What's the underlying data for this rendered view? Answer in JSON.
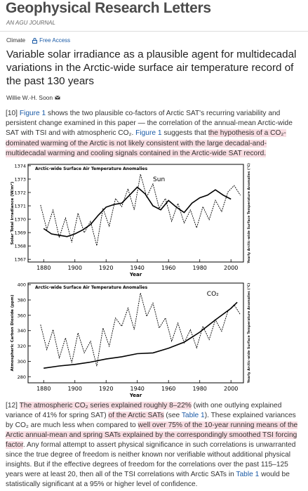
{
  "header": {
    "journal": "Geophysical Research Letters",
    "subtitle": "AN AGU JOURNAL"
  },
  "tags": [
    "Climate",
    "Free Access"
  ],
  "title": "Variable solar irradiance as a plausible agent for multidecadal variations in the Arctic-wide surface air temperature record of the past 130 years",
  "author": "Willie W.-H. Soon",
  "paragraphs": [
    {
      "segments": [
        {
          "text": "[10] "
        },
        {
          "text": "Figure 1",
          "style": "link"
        },
        {
          "text": " shows the two plausible co-factors of Arctic SAT's recurring variability and persistent change examined in this paper — the correlation of the annual-mean Arctic-wide SAT with TSI and with atmospheric CO₂. "
        },
        {
          "text": "Figure 1",
          "style": "link"
        },
        {
          "text": " suggests that "
        },
        {
          "text": "the hypothesis of a CO₂-dominated warming of the Arctic is not likely consistent with the large decadal-and-multidecadal warming and cooling signals contained in the Arctic-wide SAT record.",
          "style": "highlight"
        }
      ]
    },
    {
      "segments": [
        {
          "text": "[12] "
        },
        {
          "text": "The atmospheric CO₂ series explained roughly 8–22%",
          "style": "highlight"
        },
        {
          "text": " (with one outlying explained variance of 41% for spring SAT) "
        },
        {
          "text": "of the Arctic SATs",
          "style": "highlight"
        },
        {
          "text": " (see "
        },
        {
          "text": "Table 1",
          "style": "link"
        },
        {
          "text": "). These explained variances by CO₂ are much less when compared to "
        },
        {
          "text": "well over 75% of the 10-year running means of the Arctic annual-mean and spring SATs explained by the correspondingly smoothed TSI forcing factor",
          "style": "highlight"
        },
        {
          "text": ". Any formal attempt to assert physical significance in such correlations is unwarranted since the true degree of freedom is neither known nor verifiable without additional physical insights. But if the effective degrees of freedom for the correlations over the past 115–125 years were at least 20, then all of the TSI correlations with Arctic SATs in "
        },
        {
          "text": "Table 1",
          "style": "link"
        },
        {
          "text": " would be statistically significant at a 95% or higher level of confidence."
        }
      ]
    }
  ],
  "chart_data": [
    {
      "type": "line",
      "title": "Arctic-wide Surface Air Temperature Anomalies",
      "annotation": "Sun",
      "xlabel": "Year",
      "ylabel": "Solar Total Irradiance (W/m²)",
      "y2label": "Yearly Arctic-wide Surface Temperature Anomalies (°C)",
      "xlim": [
        1870,
        2008
      ],
      "xticks": [
        1880,
        1900,
        1920,
        1940,
        1960,
        1980,
        2000
      ],
      "ylim": [
        1366.8,
        1374.1
      ],
      "yticks": [
        1367,
        1368,
        1369,
        1370,
        1371,
        1372,
        1373,
        1374
      ],
      "y2lim": [
        -3,
        3
      ],
      "series": [
        {
          "color": "#000000",
          "dashed": false,
          "x": [
            1880,
            1885,
            1890,
            1895,
            1900,
            1905,
            1910,
            1915,
            1920,
            1925,
            1930,
            1935,
            1940,
            1945,
            1950,
            1955,
            1960,
            1965,
            1970,
            1975,
            1980,
            1985,
            1990,
            1995,
            2000
          ],
          "values": [
            1369.3,
            1368.9,
            1368.8,
            1368.7,
            1368.9,
            1369.2,
            1369.6,
            1370.3,
            1370.9,
            1371.1,
            1371.2,
            1371.8,
            1372.4,
            1371.9,
            1371.0,
            1370.7,
            1371.4,
            1370.9,
            1370.5,
            1371.2,
            1371.6,
            1371.8,
            1372.2,
            1371.8,
            1371.5
          ]
        },
        {
          "color": "#000000",
          "dashed": true,
          "axis": "y2",
          "x": [
            1878,
            1882,
            1886,
            1890,
            1894,
            1898,
            1902,
            1906,
            1910,
            1914,
            1918,
            1922,
            1926,
            1930,
            1934,
            1938,
            1942,
            1946,
            1950,
            1954,
            1958,
            1962,
            1966,
            1970,
            1974,
            1978,
            1982,
            1986,
            1990,
            1994,
            1998,
            2002,
            2006
          ],
          "values": [
            0.5,
            -1.0,
            0.2,
            -1.5,
            -0.3,
            -1.8,
            0.0,
            -1.2,
            -0.5,
            -2.0,
            0.3,
            -0.8,
            0.9,
            0.4,
            1.5,
            0.2,
            2.4,
            1.0,
            1.8,
            0.3,
            0.9,
            -0.5,
            0.6,
            -0.6,
            0.2,
            -0.9,
            0.4,
            -0.4,
            0.8,
            0.1,
            1.3,
            1.7,
            1.1
          ]
        }
      ]
    },
    {
      "type": "line",
      "title": "Arctic-wide Surface Air Temperature Anomalies",
      "annotation": "CO₂",
      "xlabel": "Year",
      "ylabel": "Atmospheric Carbon Dioxide (ppm)",
      "y2label": "Yearly Arctic-wide Surface Temperature Anomalies (°C)",
      "xlim": [
        1870,
        2008
      ],
      "xticks": [
        1880,
        1900,
        1920,
        1940,
        1960,
        1980,
        2000
      ],
      "ylim": [
        272,
        402
      ],
      "yticks": [
        280,
        300,
        320,
        340,
        360,
        380,
        400
      ],
      "y2lim": [
        -3,
        3
      ],
      "series": [
        {
          "color": "#000000",
          "dashed": false,
          "x": [
            1880,
            1890,
            1900,
            1910,
            1920,
            1930,
            1940,
            1950,
            1960,
            1970,
            1980,
            1990,
            2000,
            2004
          ],
          "values": [
            291,
            294,
            296,
            299,
            303,
            306,
            310,
            311,
            317,
            325,
            338,
            354,
            369,
            377
          ]
        },
        {
          "color": "#000000",
          "dashed": true,
          "axis": "y2",
          "x": [
            1878,
            1882,
            1886,
            1890,
            1894,
            1898,
            1902,
            1906,
            1910,
            1914,
            1918,
            1922,
            1926,
            1930,
            1934,
            1938,
            1942,
            1946,
            1950,
            1954,
            1958,
            1962,
            1966,
            1970,
            1974,
            1978,
            1982,
            1986,
            1990,
            1994,
            1998,
            2002,
            2006
          ],
          "values": [
            0.5,
            -1.0,
            0.2,
            -1.5,
            -0.3,
            -1.8,
            0.0,
            -1.2,
            -0.5,
            -2.0,
            0.3,
            -0.8,
            0.9,
            0.4,
            1.5,
            0.2,
            2.4,
            1.0,
            1.8,
            0.3,
            0.9,
            -0.5,
            0.6,
            -0.6,
            0.2,
            -0.9,
            0.4,
            -0.4,
            0.8,
            0.1,
            1.3,
            1.7,
            1.1
          ]
        }
      ]
    }
  ]
}
